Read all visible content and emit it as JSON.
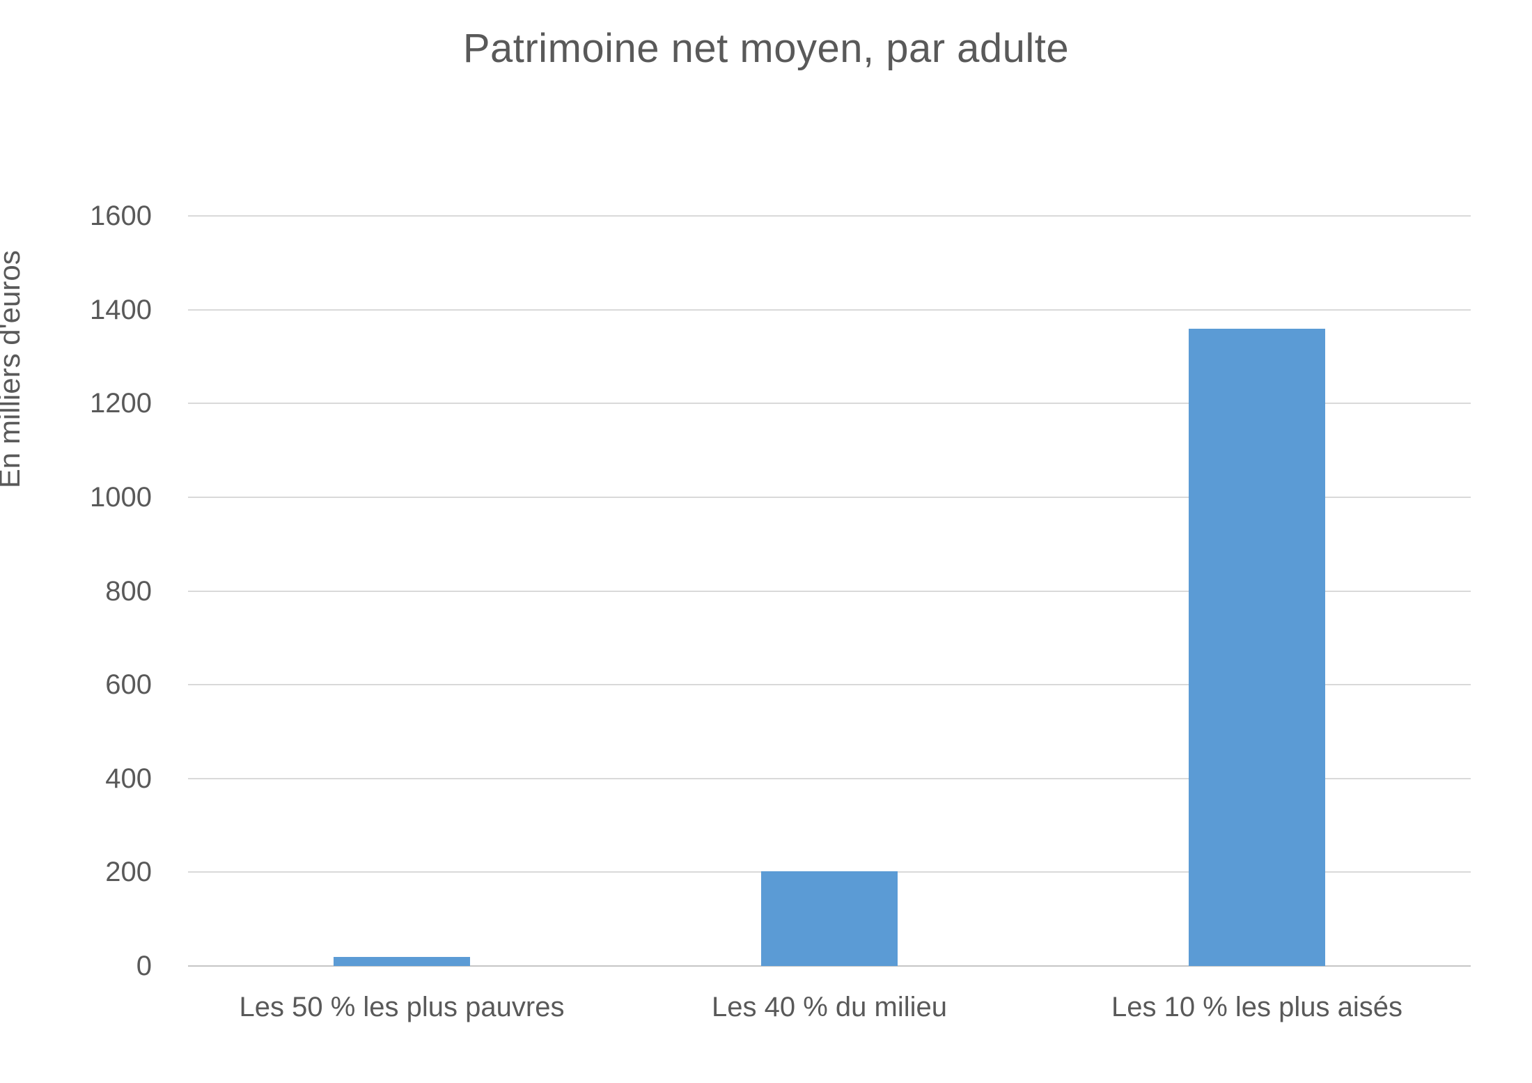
{
  "chart_data": {
    "type": "bar",
    "title": "Patrimoine net moyen, par adulte",
    "categories": [
      "Les 50 % les plus pauvres",
      "Les 40 % du milieu",
      "Les 10 % les plus aisés"
    ],
    "values": [
      20,
      202,
      1360
    ],
    "xlabel": "",
    "ylabel": "En milliers d'euros",
    "ylim": [
      0,
      1600
    ],
    "yticks": [
      0,
      200,
      400,
      600,
      800,
      1000,
      1200,
      1400,
      1600
    ],
    "grid": true,
    "legend": "none",
    "colors": {
      "bar": "#5b9bd5",
      "text": "#595959",
      "gridline": "#d9d9d9",
      "axis_line": "#c6c6c6",
      "background": "#ffffff"
    }
  }
}
